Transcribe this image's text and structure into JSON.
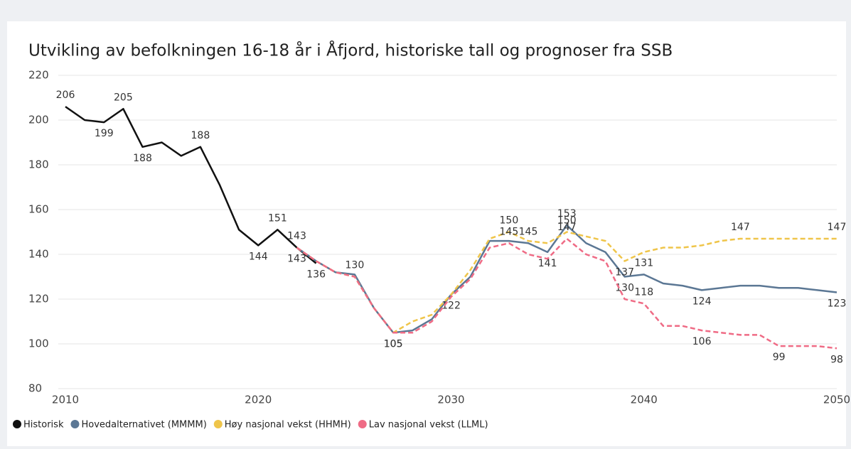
{
  "chart_data": {
    "type": "line",
    "title": "Utvikling av befolkningen 16-18 år i Åfjord, historiske tall og prognoser fra SSB",
    "x": [
      2010,
      2011,
      2012,
      2013,
      2014,
      2015,
      2016,
      2017,
      2018,
      2019,
      2020,
      2021,
      2022,
      2023,
      2024,
      2025,
      2026,
      2027,
      2028,
      2029,
      2030,
      2031,
      2032,
      2033,
      2034,
      2035,
      2036,
      2037,
      2038,
      2039,
      2040,
      2041,
      2042,
      2043,
      2044,
      2045,
      2046,
      2047,
      2048,
      2049,
      2050
    ],
    "xlim": [
      2010,
      2050
    ],
    "xticks": [
      2010,
      2020,
      2030,
      2040,
      2050
    ],
    "ylim": [
      80,
      220
    ],
    "yticks": [
      80,
      100,
      120,
      140,
      160,
      180,
      200,
      220
    ],
    "grid": true,
    "legend": "bottom-left",
    "series": [
      {
        "name": "Historisk",
        "color": "#111111",
        "dashed": false,
        "values": [
          206,
          200,
          199,
          205,
          188,
          190,
          184,
          188,
          171,
          151,
          144,
          151,
          143,
          136,
          null,
          null,
          null,
          null,
          null,
          null,
          null,
          null,
          null,
          null,
          null,
          null,
          null,
          null,
          null,
          null,
          null,
          null,
          null,
          null,
          null,
          null,
          null,
          null,
          null,
          null,
          null
        ],
        "value_labels": [
          "206",
          null,
          "199",
          "205",
          "188",
          null,
          null,
          "188",
          null,
          null,
          "144",
          "151",
          "143",
          "136",
          null,
          null,
          null,
          null,
          null,
          null,
          null,
          null,
          null,
          null,
          null,
          null,
          null,
          null,
          null,
          null,
          null,
          null,
          null,
          null,
          null,
          null,
          null,
          null,
          null,
          null,
          null
        ]
      },
      {
        "name": "Hovedalternativet (MMMM)",
        "color": "#5b7794",
        "dashed": false,
        "values": [
          null,
          null,
          null,
          null,
          null,
          null,
          null,
          null,
          null,
          null,
          null,
          null,
          143,
          137,
          132,
          131,
          116,
          105,
          106,
          111,
          122,
          130,
          146,
          146,
          145,
          141,
          153,
          145,
          141,
          130,
          131,
          127,
          126,
          124,
          125,
          126,
          126,
          125,
          125,
          124,
          123
        ],
        "value_labels": [
          null,
          null,
          null,
          null,
          null,
          null,
          null,
          null,
          null,
          null,
          null,
          null,
          null,
          null,
          null,
          null,
          null,
          null,
          null,
          null,
          null,
          null,
          null,
          null,
          "145",
          "141",
          "153",
          null,
          null,
          "130",
          "131",
          null,
          null,
          "124",
          null,
          null,
          null,
          null,
          null,
          null,
          "123"
        ]
      },
      {
        "name": "Høy nasjonal vekst (HHMH)",
        "color": "#efc54a",
        "dashed": true,
        "values": [
          null,
          null,
          null,
          null,
          null,
          null,
          null,
          null,
          null,
          null,
          null,
          null,
          143,
          137,
          132,
          130,
          116,
          105,
          110,
          113,
          122,
          133,
          147,
          150,
          146,
          145,
          150,
          148,
          146,
          137,
          141,
          143,
          143,
          144,
          146,
          147,
          147,
          147,
          147,
          147,
          147
        ],
        "value_labels": [
          null,
          null,
          null,
          null,
          null,
          null,
          null,
          null,
          null,
          null,
          null,
          null,
          null,
          null,
          null,
          "130",
          null,
          "105",
          null,
          null,
          "122",
          null,
          null,
          "150",
          null,
          null,
          "150",
          null,
          null,
          "137",
          null,
          null,
          null,
          null,
          null,
          "147",
          null,
          null,
          null,
          null,
          "147"
        ]
      },
      {
        "name": "Lav nasjonal vekst (LLML)",
        "color": "#ef6b85",
        "dashed": true,
        "values": [
          null,
          null,
          null,
          null,
          null,
          null,
          null,
          null,
          null,
          null,
          null,
          null,
          143,
          137,
          132,
          130,
          116,
          105,
          105,
          110,
          121,
          129,
          143,
          145,
          140,
          138,
          147,
          140,
          137,
          120,
          118,
          108,
          108,
          106,
          105,
          104,
          104,
          99,
          99,
          99,
          98
        ],
        "value_labels": [
          null,
          null,
          null,
          null,
          null,
          null,
          null,
          null,
          null,
          null,
          null,
          null,
          "143",
          null,
          null,
          null,
          null,
          "105",
          null,
          null,
          null,
          null,
          null,
          "145",
          null,
          null,
          "147",
          null,
          null,
          null,
          "118",
          null,
          null,
          "106",
          null,
          null,
          null,
          "99",
          null,
          null,
          "98"
        ]
      }
    ]
  }
}
